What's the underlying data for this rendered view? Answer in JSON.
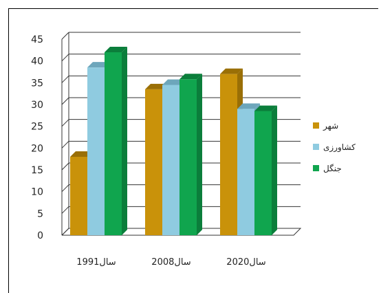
{
  "chart_data": {
    "type": "bar",
    "title": "",
    "xlabel": "",
    "ylabel": "",
    "categories": [
      "سال1991",
      "سال2008",
      "سال2020"
    ],
    "series": [
      {
        "name": "شهر",
        "values": [
          18,
          33.5,
          37
        ]
      },
      {
        "name": "کشاورزی",
        "values": [
          38.5,
          34.5,
          29
        ]
      },
      {
        "name": "جنگل",
        "values": [
          42,
          35.8,
          28.5
        ]
      }
    ],
    "ylim": [
      0,
      45
    ],
    "yticks": [
      0,
      5,
      10,
      15,
      20,
      25,
      30,
      35,
      40,
      45
    ],
    "grid": true,
    "legend_position": "right",
    "colors": {
      "series": [
        "#C9920A",
        "#8FCBE0",
        "#10A54E"
      ],
      "series_dark": [
        "#9A6F06",
        "#6DA6BB",
        "#0B7E3B"
      ],
      "grid": "#333333"
    }
  }
}
